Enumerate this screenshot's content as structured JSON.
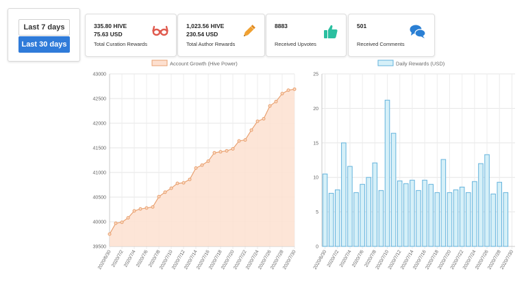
{
  "period_selector": {
    "last7_label": "Last 7 days",
    "last30_label": "Last 30 days",
    "active": "last30"
  },
  "stats": [
    {
      "line1": "335.80 HIVE",
      "line2": "75.63 USD",
      "label": "Total Curation Rewards",
      "icon": "glasses-icon",
      "color": "#e05a4e"
    },
    {
      "line1": "1,023.56 HIVE",
      "line2": "230.54 USD",
      "label": "Total Author Rewards",
      "icon": "pencil-icon",
      "color": "#f0a030"
    },
    {
      "line1": "8883",
      "line2": "",
      "label": "Received Upvotes",
      "icon": "thumbs-up-icon",
      "color": "#2bbfa0"
    },
    {
      "line1": "501",
      "line2": "",
      "label": "Received Comments",
      "icon": "comments-icon",
      "color": "#2a7fd4"
    }
  ],
  "chart_data": [
    {
      "type": "area",
      "legend": "Account Growth (Hive Power)",
      "color_line": "#e8a070",
      "color_fill": "#fde0d0",
      "ylim": [
        39500,
        43000
      ],
      "yticks": [
        39500,
        40000,
        40500,
        41000,
        41500,
        42000,
        42500,
        43000
      ],
      "x": [
        "2020/6/30",
        "2020/7/1",
        "2020/7/2",
        "2020/7/3",
        "2020/7/4",
        "2020/7/5",
        "2020/7/6",
        "2020/7/7",
        "2020/7/8",
        "2020/7/9",
        "2020/7/10",
        "2020/7/11",
        "2020/7/12",
        "2020/7/13",
        "2020/7/14",
        "2020/7/15",
        "2020/7/16",
        "2020/7/17",
        "2020/7/18",
        "2020/7/19",
        "2020/7/20",
        "2020/7/21",
        "2020/7/22",
        "2020/7/23",
        "2020/7/24",
        "2020/7/25",
        "2020/7/26",
        "2020/7/27",
        "2020/7/28",
        "2020/7/29",
        "2020/7/30"
      ],
      "xtick_labels": [
        "2020/6/30",
        "2020/7/2",
        "2020/7/4",
        "2020/7/6",
        "2020/7/8",
        "2020/7/10",
        "2020/7/12",
        "2020/7/14",
        "2020/7/16",
        "2020/7/18",
        "2020/7/20",
        "2020/7/22",
        "2020/7/24",
        "2020/7/26",
        "2020/7/28",
        "2020/7/30"
      ],
      "values": [
        39750,
        39970,
        39990,
        40080,
        40220,
        40260,
        40280,
        40300,
        40510,
        40600,
        40680,
        40780,
        40790,
        40860,
        41090,
        41150,
        41230,
        41400,
        41420,
        41440,
        41480,
        41640,
        41660,
        41860,
        42040,
        42090,
        42350,
        42440,
        42600,
        42670,
        42690
      ]
    },
    {
      "type": "bar",
      "legend": "Daily Rewards (USD)",
      "color_line": "#62b2dc",
      "color_fill": "#d6f0f8",
      "ylim": [
        0,
        25
      ],
      "yticks": [
        0,
        5,
        10,
        15,
        20,
        25
      ],
      "x": [
        "2020/6/30",
        "2020/7/1",
        "2020/7/2",
        "2020/7/3",
        "2020/7/4",
        "2020/7/5",
        "2020/7/6",
        "2020/7/7",
        "2020/7/8",
        "2020/7/9",
        "2020/7/10",
        "2020/7/11",
        "2020/7/12",
        "2020/7/13",
        "2020/7/14",
        "2020/7/15",
        "2020/7/16",
        "2020/7/17",
        "2020/7/18",
        "2020/7/19",
        "2020/7/20",
        "2020/7/21",
        "2020/7/22",
        "2020/7/23",
        "2020/7/24",
        "2020/7/25",
        "2020/7/26",
        "2020/7/27",
        "2020/7/28",
        "2020/7/29",
        "2020/7/30"
      ],
      "xtick_labels": [
        "2020/6/30",
        "2020/7/2",
        "2020/7/4",
        "2020/7/6",
        "2020/7/8",
        "2020/7/10",
        "2020/7/12",
        "2020/7/14",
        "2020/7/16",
        "2020/7/18",
        "2020/7/20",
        "2020/7/22",
        "2020/7/24",
        "2020/7/26",
        "2020/7/28",
        "2020/7/30"
      ],
      "values": [
        10.5,
        7.7,
        8.2,
        15.0,
        11.6,
        7.8,
        9.0,
        10.0,
        12.1,
        8.1,
        21.2,
        16.4,
        9.5,
        9.1,
        9.6,
        8.1,
        9.6,
        9.0,
        7.8,
        12.6,
        7.8,
        8.2,
        8.6,
        7.8,
        9.4,
        12.0,
        13.3,
        7.6,
        9.3,
        7.8,
        0
      ]
    }
  ]
}
